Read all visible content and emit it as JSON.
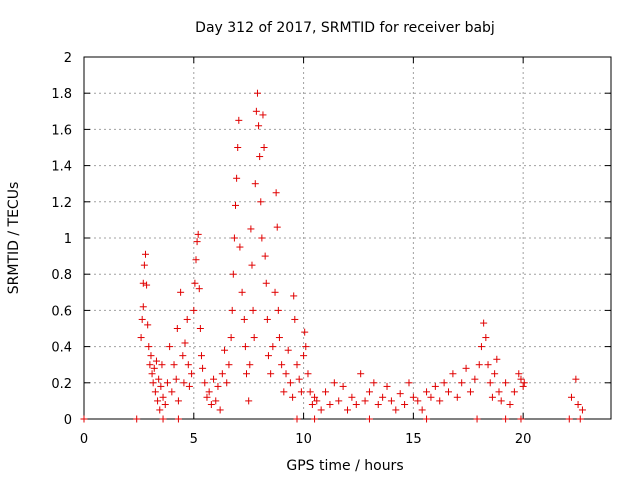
{
  "chart_data": {
    "type": "scatter",
    "title": "Day 312 of 2017, SRMTID for receiver babj",
    "xlabel": "GPS time / hours",
    "ylabel": "SRMTID / TECUs",
    "xlim": [
      0,
      24
    ],
    "ylim": [
      0,
      2
    ],
    "xticks": [
      0,
      5,
      10,
      15,
      20
    ],
    "xtick_labels": [
      "0",
      "5",
      "10",
      "15",
      "20"
    ],
    "yticks": [
      0,
      0.2,
      0.4,
      0.6,
      0.8,
      1,
      1.2,
      1.4,
      1.6,
      1.8,
      2
    ],
    "ytick_labels": [
      "0",
      "0.2",
      "0.4",
      "0.6",
      "0.8",
      "1",
      "1.2",
      "1.4",
      "1.6",
      "1.8",
      "2"
    ],
    "grid": true,
    "marker": "+",
    "marker_color": "#e00000",
    "series": [
      {
        "name": "babj",
        "points": [
          [
            0.0,
            0.0
          ],
          [
            2.4,
            0.0
          ],
          [
            3.6,
            0.0
          ],
          [
            4.3,
            0.0
          ],
          [
            9.7,
            0.0
          ],
          [
            10.5,
            0.0
          ],
          [
            13.0,
            0.0
          ],
          [
            15.6,
            0.0
          ],
          [
            17.9,
            0.0
          ],
          [
            19.2,
            0.0
          ],
          [
            19.9,
            0.0
          ],
          [
            22.1,
            0.0
          ],
          [
            22.6,
            0.0
          ],
          [
            2.6,
            0.45
          ],
          [
            2.65,
            0.55
          ],
          [
            2.7,
            0.75
          ],
          [
            2.75,
            0.85
          ],
          [
            2.8,
            0.91
          ],
          [
            2.85,
            0.74
          ],
          [
            2.7,
            0.62
          ],
          [
            2.9,
            0.52
          ],
          [
            2.95,
            0.4
          ],
          [
            3.0,
            0.3
          ],
          [
            3.05,
            0.35
          ],
          [
            3.1,
            0.25
          ],
          [
            3.15,
            0.2
          ],
          [
            3.2,
            0.28
          ],
          [
            3.25,
            0.15
          ],
          [
            3.3,
            0.32
          ],
          [
            3.35,
            0.1
          ],
          [
            3.4,
            0.22
          ],
          [
            3.45,
            0.05
          ],
          [
            3.5,
            0.18
          ],
          [
            3.55,
            0.3
          ],
          [
            3.6,
            0.12
          ],
          [
            3.7,
            0.08
          ],
          [
            3.8,
            0.2
          ],
          [
            3.9,
            0.4
          ],
          [
            4.0,
            0.15
          ],
          [
            4.1,
            0.3
          ],
          [
            4.2,
            0.22
          ],
          [
            4.25,
            0.5
          ],
          [
            4.3,
            0.1
          ],
          [
            4.4,
            0.7
          ],
          [
            4.5,
            0.35
          ],
          [
            4.55,
            0.2
          ],
          [
            4.6,
            0.42
          ],
          [
            4.7,
            0.55
          ],
          [
            4.75,
            0.3
          ],
          [
            4.8,
            0.18
          ],
          [
            4.9,
            0.25
          ],
          [
            5.0,
            0.6
          ],
          [
            5.05,
            0.75
          ],
          [
            5.1,
            0.88
          ],
          [
            5.15,
            0.98
          ],
          [
            5.2,
            1.02
          ],
          [
            5.25,
            0.72
          ],
          [
            5.3,
            0.5
          ],
          [
            5.35,
            0.35
          ],
          [
            5.4,
            0.28
          ],
          [
            5.5,
            0.2
          ],
          [
            5.6,
            0.12
          ],
          [
            5.7,
            0.15
          ],
          [
            5.8,
            0.08
          ],
          [
            5.9,
            0.22
          ],
          [
            6.0,
            0.1
          ],
          [
            6.1,
            0.18
          ],
          [
            6.2,
            0.05
          ],
          [
            6.3,
            0.25
          ],
          [
            6.4,
            0.38
          ],
          [
            6.5,
            0.2
          ],
          [
            6.6,
            0.3
          ],
          [
            6.7,
            0.45
          ],
          [
            6.75,
            0.6
          ],
          [
            6.8,
            0.8
          ],
          [
            6.85,
            1.0
          ],
          [
            6.9,
            1.18
          ],
          [
            6.95,
            1.33
          ],
          [
            7.0,
            1.5
          ],
          [
            7.05,
            1.65
          ],
          [
            7.1,
            0.95
          ],
          [
            7.2,
            0.7
          ],
          [
            7.3,
            0.55
          ],
          [
            7.35,
            0.4
          ],
          [
            7.4,
            0.25
          ],
          [
            7.5,
            0.1
          ],
          [
            7.55,
            0.3
          ],
          [
            7.6,
            1.05
          ],
          [
            7.65,
            0.85
          ],
          [
            7.7,
            0.6
          ],
          [
            7.75,
            0.45
          ],
          [
            7.8,
            1.3
          ],
          [
            7.85,
            1.7
          ],
          [
            7.9,
            1.8
          ],
          [
            7.95,
            1.62
          ],
          [
            8.0,
            1.45
          ],
          [
            8.05,
            1.2
          ],
          [
            8.1,
            1.0
          ],
          [
            8.15,
            1.68
          ],
          [
            8.2,
            1.5
          ],
          [
            8.25,
            0.9
          ],
          [
            8.3,
            0.75
          ],
          [
            8.35,
            0.55
          ],
          [
            8.4,
            0.35
          ],
          [
            8.5,
            0.25
          ],
          [
            8.6,
            0.4
          ],
          [
            8.7,
            0.7
          ],
          [
            8.75,
            1.25
          ],
          [
            8.8,
            1.06
          ],
          [
            8.85,
            0.6
          ],
          [
            8.9,
            0.45
          ],
          [
            9.0,
            0.3
          ],
          [
            9.1,
            0.15
          ],
          [
            9.2,
            0.25
          ],
          [
            9.3,
            0.38
          ],
          [
            9.4,
            0.2
          ],
          [
            9.5,
            0.12
          ],
          [
            9.55,
            0.68
          ],
          [
            9.6,
            0.55
          ],
          [
            9.7,
            0.3
          ],
          [
            9.8,
            0.22
          ],
          [
            9.9,
            0.15
          ],
          [
            10.0,
            0.35
          ],
          [
            10.05,
            0.48
          ],
          [
            10.1,
            0.4
          ],
          [
            10.2,
            0.25
          ],
          [
            10.3,
            0.15
          ],
          [
            10.4,
            0.08
          ],
          [
            10.5,
            0.12
          ],
          [
            10.6,
            0.1
          ],
          [
            10.8,
            0.05
          ],
          [
            11.0,
            0.15
          ],
          [
            11.2,
            0.08
          ],
          [
            11.4,
            0.2
          ],
          [
            11.6,
            0.1
          ],
          [
            11.8,
            0.18
          ],
          [
            12.0,
            0.05
          ],
          [
            12.2,
            0.12
          ],
          [
            12.4,
            0.08
          ],
          [
            12.6,
            0.25
          ],
          [
            12.8,
            0.1
          ],
          [
            13.0,
            0.15
          ],
          [
            13.2,
            0.2
          ],
          [
            13.4,
            0.08
          ],
          [
            13.6,
            0.12
          ],
          [
            13.8,
            0.18
          ],
          [
            14.0,
            0.1
          ],
          [
            14.2,
            0.05
          ],
          [
            14.4,
            0.14
          ],
          [
            14.6,
            0.08
          ],
          [
            14.8,
            0.2
          ],
          [
            15.0,
            0.12
          ],
          [
            15.2,
            0.1
          ],
          [
            15.4,
            0.05
          ],
          [
            15.6,
            0.15
          ],
          [
            15.8,
            0.12
          ],
          [
            16.0,
            0.18
          ],
          [
            16.2,
            0.1
          ],
          [
            16.4,
            0.2
          ],
          [
            16.6,
            0.15
          ],
          [
            16.8,
            0.25
          ],
          [
            17.0,
            0.12
          ],
          [
            17.2,
            0.2
          ],
          [
            17.4,
            0.28
          ],
          [
            17.6,
            0.15
          ],
          [
            17.8,
            0.22
          ],
          [
            18.0,
            0.3
          ],
          [
            18.1,
            0.4
          ],
          [
            18.2,
            0.53
          ],
          [
            18.3,
            0.45
          ],
          [
            18.4,
            0.3
          ],
          [
            18.5,
            0.2
          ],
          [
            18.6,
            0.12
          ],
          [
            18.7,
            0.25
          ],
          [
            18.8,
            0.33
          ],
          [
            18.9,
            0.15
          ],
          [
            19.0,
            0.1
          ],
          [
            19.2,
            0.2
          ],
          [
            19.4,
            0.08
          ],
          [
            19.6,
            0.15
          ],
          [
            19.8,
            0.25
          ],
          [
            19.9,
            0.22
          ],
          [
            20.0,
            0.18
          ],
          [
            20.05,
            0.2
          ],
          [
            22.2,
            0.12
          ],
          [
            22.4,
            0.22
          ],
          [
            22.5,
            0.08
          ],
          [
            22.7,
            0.05
          ]
        ]
      }
    ]
  }
}
